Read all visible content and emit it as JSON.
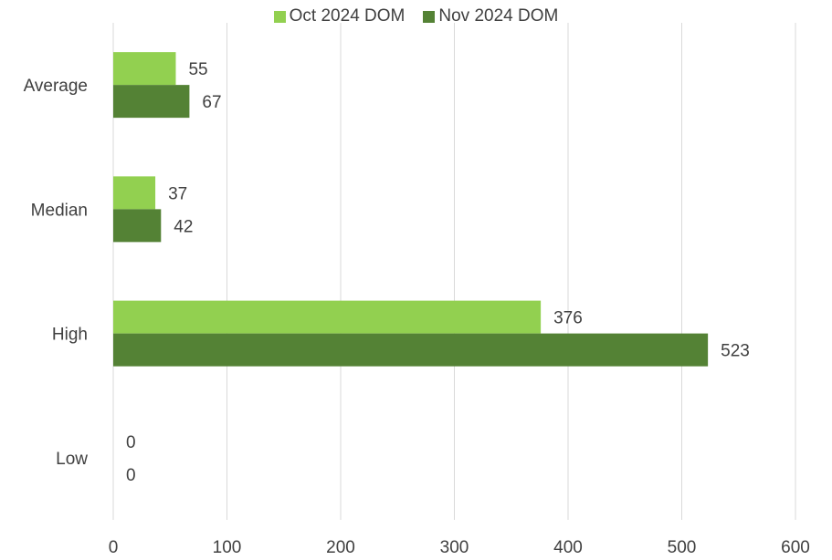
{
  "chart_data": {
    "type": "bar",
    "orientation": "horizontal",
    "categories": [
      "Average",
      "Median",
      "High",
      "Low"
    ],
    "series": [
      {
        "name": "Oct 2024 DOM",
        "values": [
          55,
          37,
          376,
          0
        ],
        "color": "#92d050"
      },
      {
        "name": "Nov 2024 DOM",
        "values": [
          67,
          42,
          523,
          0
        ],
        "color": "#548235"
      }
    ],
    "xlim": [
      0,
      600
    ],
    "xticks": [
      0,
      100,
      200,
      300,
      400,
      500,
      600
    ],
    "grid": true,
    "legend_position": "top-center",
    "data_labels": true
  }
}
